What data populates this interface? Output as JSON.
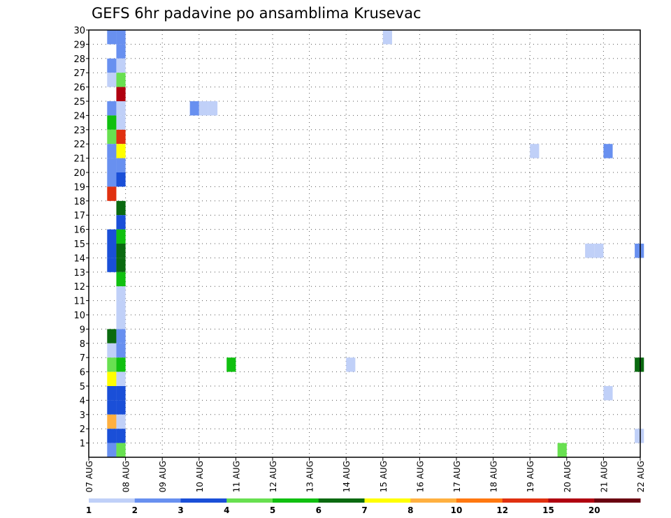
{
  "chart_data": {
    "type": "heatmap",
    "title": "GEFS 6hr padavine po ansamblima Krusevac",
    "x_tick_labels": [
      "07 AUG",
      "08 AUG",
      "09 AUG",
      "10 AUG",
      "11 AUG",
      "12 AUG",
      "13 AUG",
      "14 AUG",
      "15 AUG",
      "16 AUG",
      "17 AUG",
      "18 AUG",
      "19 AUG",
      "20 AUG",
      "21 AUG",
      "22 AUG"
    ],
    "y_tick_labels": [
      "1",
      "2",
      "3",
      "4",
      "5",
      "6",
      "7",
      "8",
      "9",
      "10",
      "11",
      "12",
      "13",
      "14",
      "15",
      "16",
      "17",
      "18",
      "19",
      "20",
      "21",
      "22",
      "23",
      "24",
      "25",
      "26",
      "27",
      "28",
      "29",
      "30"
    ],
    "x_range_days": [
      7,
      22
    ],
    "y_range": [
      0,
      30
    ],
    "grid": true,
    "colorbar": {
      "colors": [
        "#c0d0f8",
        "#6890f0",
        "#1a4fd8",
        "#68e050",
        "#10c010",
        "#0a6a10",
        "#ffff00",
        "#ffb040",
        "#ff7810",
        "#e03010",
        "#b00010",
        "#6a0010"
      ],
      "labels": [
        "1",
        "2",
        "3",
        "4",
        "5",
        "6",
        "7",
        "8",
        "10",
        "12",
        "15",
        "20"
      ]
    },
    "cells": [
      {
        "day": 7.5,
        "member": 30,
        "bin": 1
      },
      {
        "day": 7.75,
        "member": 30,
        "bin": 1
      },
      {
        "day": 7.75,
        "member": 29,
        "bin": 1
      },
      {
        "day": 7.5,
        "member": 28,
        "bin": 1
      },
      {
        "day": 7.75,
        "member": 28,
        "bin": 0
      },
      {
        "day": 7.5,
        "member": 27,
        "bin": 0
      },
      {
        "day": 7.75,
        "member": 27,
        "bin": 3
      },
      {
        "day": 7.75,
        "member": 26,
        "bin": 10
      },
      {
        "day": 7.5,
        "member": 25,
        "bin": 1
      },
      {
        "day": 7.75,
        "member": 25,
        "bin": 0
      },
      {
        "day": 7.5,
        "member": 24,
        "bin": 4
      },
      {
        "day": 7.75,
        "member": 24,
        "bin": 0
      },
      {
        "day": 7.5,
        "member": 23,
        "bin": 3
      },
      {
        "day": 7.75,
        "member": 23,
        "bin": 9
      },
      {
        "day": 7.5,
        "member": 22,
        "bin": 1
      },
      {
        "day": 7.75,
        "member": 22,
        "bin": 6
      },
      {
        "day": 7.5,
        "member": 21,
        "bin": 1
      },
      {
        "day": 7.75,
        "member": 21,
        "bin": 1
      },
      {
        "day": 7.5,
        "member": 20,
        "bin": 1
      },
      {
        "day": 7.75,
        "member": 20,
        "bin": 2
      },
      {
        "day": 7.5,
        "member": 19,
        "bin": 9
      },
      {
        "day": 7.75,
        "member": 18,
        "bin": 5
      },
      {
        "day": 7.75,
        "member": 17,
        "bin": 2
      },
      {
        "day": 7.5,
        "member": 16,
        "bin": 2
      },
      {
        "day": 7.75,
        "member": 16,
        "bin": 4
      },
      {
        "day": 7.5,
        "member": 15,
        "bin": 2
      },
      {
        "day": 7.75,
        "member": 15,
        "bin": 5
      },
      {
        "day": 7.5,
        "member": 14,
        "bin": 2
      },
      {
        "day": 7.75,
        "member": 14,
        "bin": 5
      },
      {
        "day": 7.75,
        "member": 13,
        "bin": 4
      },
      {
        "day": 7.75,
        "member": 12,
        "bin": 0
      },
      {
        "day": 7.75,
        "member": 11,
        "bin": 0
      },
      {
        "day": 7.75,
        "member": 10,
        "bin": 0
      },
      {
        "day": 7.5,
        "member": 9,
        "bin": 5
      },
      {
        "day": 7.75,
        "member": 9,
        "bin": 1
      },
      {
        "day": 7.5,
        "member": 8,
        "bin": 0
      },
      {
        "day": 7.75,
        "member": 8,
        "bin": 1
      },
      {
        "day": 7.5,
        "member": 7,
        "bin": 3
      },
      {
        "day": 7.75,
        "member": 7,
        "bin": 4
      },
      {
        "day": 7.5,
        "member": 6,
        "bin": 6
      },
      {
        "day": 7.75,
        "member": 6,
        "bin": 0
      },
      {
        "day": 7.5,
        "member": 5,
        "bin": 2
      },
      {
        "day": 7.75,
        "member": 5,
        "bin": 2
      },
      {
        "day": 7.5,
        "member": 4,
        "bin": 2
      },
      {
        "day": 7.75,
        "member": 4,
        "bin": 2
      },
      {
        "day": 7.5,
        "member": 3,
        "bin": 7
      },
      {
        "day": 7.75,
        "member": 3,
        "bin": 0
      },
      {
        "day": 7.5,
        "member": 2,
        "bin": 2
      },
      {
        "day": 7.75,
        "member": 2,
        "bin": 2
      },
      {
        "day": 7.5,
        "member": 1,
        "bin": 1
      },
      {
        "day": 7.75,
        "member": 1,
        "bin": 3
      },
      {
        "day": 9.75,
        "member": 25,
        "bin": 1
      },
      {
        "day": 10.0,
        "member": 25,
        "bin": 0
      },
      {
        "day": 10.25,
        "member": 25,
        "bin": 0
      },
      {
        "day": 10.75,
        "member": 7,
        "bin": 4
      },
      {
        "day": 14.0,
        "member": 7,
        "bin": 0
      },
      {
        "day": 15.0,
        "member": 30,
        "bin": 0
      },
      {
        "day": 19.0,
        "member": 22,
        "bin": 0
      },
      {
        "day": 19.75,
        "member": 1,
        "bin": 3
      },
      {
        "day": 20.5,
        "member": 15,
        "bin": 0
      },
      {
        "day": 20.75,
        "member": 15,
        "bin": 0
      },
      {
        "day": 21.0,
        "member": 22,
        "bin": 1
      },
      {
        "day": 21.0,
        "member": 5,
        "bin": 0
      },
      {
        "day": 21.85,
        "member": 15,
        "bin": 1
      },
      {
        "day": 21.85,
        "member": 7,
        "bin": 5
      },
      {
        "day": 21.85,
        "member": 2,
        "bin": 0
      }
    ]
  }
}
